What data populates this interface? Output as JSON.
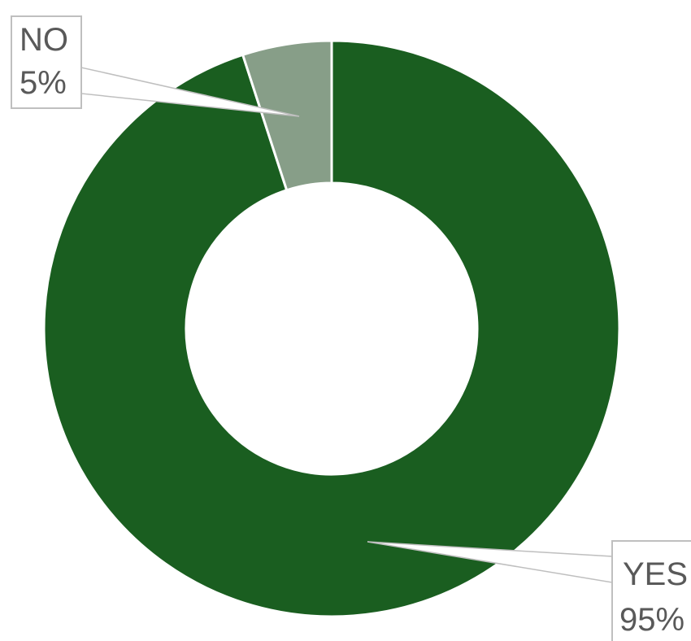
{
  "chart_data": {
    "type": "pie",
    "variant": "donut",
    "categories": [
      "YES",
      "NO"
    ],
    "values": [
      95,
      5
    ],
    "colors": [
      "#1a5e20",
      "#879e88"
    ],
    "data_labels": [
      {
        "category": "YES",
        "percent": "95%"
      },
      {
        "category": "NO",
        "percent": "5%"
      }
    ],
    "title": "",
    "legend": "none"
  }
}
